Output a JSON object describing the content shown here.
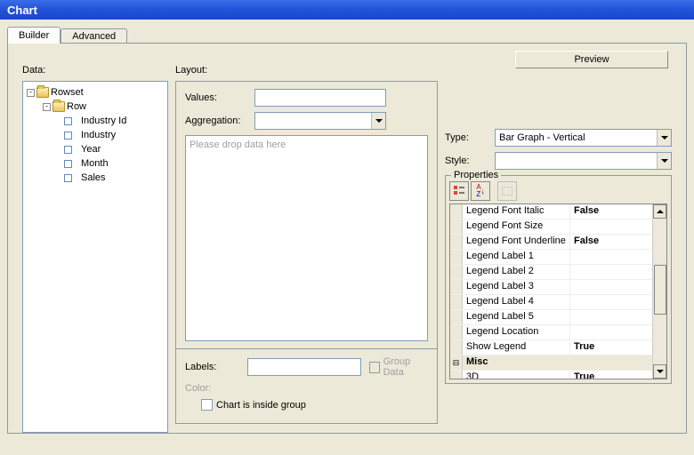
{
  "window": {
    "title": "Chart"
  },
  "tabs": {
    "builder": "Builder",
    "advanced": "Advanced"
  },
  "buttons": {
    "preview": "Preview"
  },
  "labels": {
    "data": "Data:",
    "layout": "Layout:",
    "values": "Values:",
    "aggregation": "Aggregation:",
    "drop_hint": "Please drop data here",
    "labels": "Labels:",
    "group_data": "Group Data",
    "color": "Color:",
    "inside_group": "Chart is inside group",
    "type": "Type:",
    "style": "Style:",
    "properties": "Properties"
  },
  "tree": {
    "root": "Rowset",
    "child": "Row",
    "leaves": [
      "Industry Id",
      "Industry",
      "Year",
      "Month",
      "Sales"
    ]
  },
  "type_dropdown": {
    "value": "Bar Graph - Vertical"
  },
  "style_dropdown": {
    "value": ""
  },
  "properties": {
    "rows": [
      {
        "name": "Legend Font Italic",
        "val": "False",
        "cat": false
      },
      {
        "name": "Legend Font Size",
        "val": "",
        "cat": false
      },
      {
        "name": "Legend Font Underline",
        "val": "False",
        "cat": false
      },
      {
        "name": "Legend Label 1",
        "val": "",
        "cat": false
      },
      {
        "name": "Legend Label 2",
        "val": "",
        "cat": false
      },
      {
        "name": "Legend Label 3",
        "val": "",
        "cat": false
      },
      {
        "name": "Legend Label 4",
        "val": "",
        "cat": false
      },
      {
        "name": "Legend Label 5",
        "val": "",
        "cat": false
      },
      {
        "name": "Legend Location",
        "val": "",
        "cat": false
      },
      {
        "name": "Show Legend",
        "val": "True",
        "cat": false
      },
      {
        "name": "Misc",
        "val": "",
        "cat": true,
        "expand": "⊟"
      },
      {
        "name": "3D",
        "val": "True",
        "cat": false
      }
    ]
  },
  "colors": {
    "titlebar_gradient": [
      "#3a6ee8",
      "#1a48c8"
    ],
    "panel_bg": "#ece9d8",
    "border": "#919b9c",
    "input_border": "#7f9db9"
  }
}
